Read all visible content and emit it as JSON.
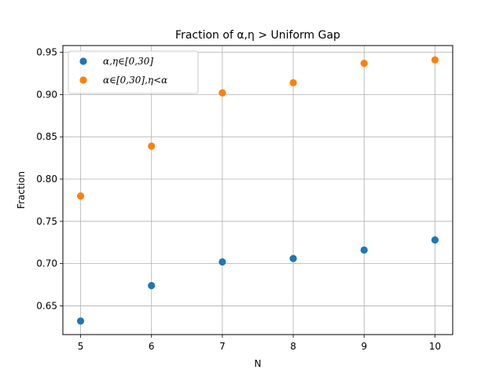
{
  "chart_data": {
    "type": "scatter",
    "title": "Fraction of α,η >  Uniform Gap",
    "xlabel": "N",
    "ylabel": "Fraction",
    "x": [
      5,
      6,
      7,
      8,
      9,
      10
    ],
    "xlim": [
      4.75,
      10.25
    ],
    "ylim": [
      0.616,
      0.958
    ],
    "xticks": [
      5,
      6,
      7,
      8,
      9,
      10
    ],
    "yticks": [
      0.65,
      0.7,
      0.75,
      0.8,
      0.85,
      0.9,
      0.95
    ],
    "yticks_labels": [
      "0.65",
      "0.70",
      "0.75",
      "0.80",
      "0.85",
      "0.90",
      "0.95"
    ],
    "grid": true,
    "legend_position": "top-left",
    "series": [
      {
        "name": "α,η∈[0,30]",
        "color": "#1f77b4",
        "values": [
          0.632,
          0.674,
          0.702,
          0.706,
          0.716,
          0.728
        ]
      },
      {
        "name": "α∈[0,30],η<α",
        "color": "#ff7f0e",
        "values": [
          0.78,
          0.839,
          0.902,
          0.914,
          0.937,
          0.941
        ]
      }
    ]
  }
}
